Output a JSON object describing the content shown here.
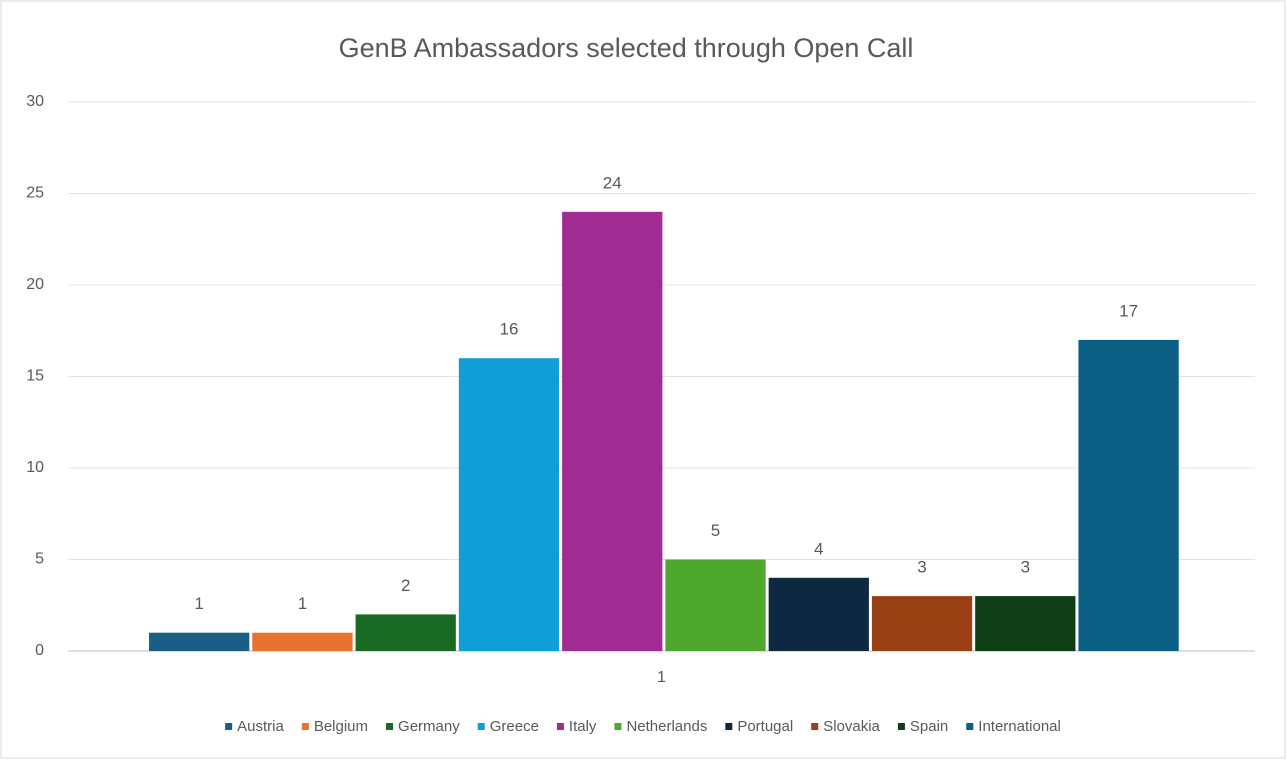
{
  "chart_data": {
    "type": "bar",
    "title": "GenB Ambassadors selected through Open Call",
    "categories": [
      "1"
    ],
    "series": [
      {
        "name": "Austria",
        "color": "#1a5e85",
        "values": [
          1
        ]
      },
      {
        "name": "Belgium",
        "color": "#e97132",
        "values": [
          1
        ]
      },
      {
        "name": "Germany",
        "color": "#196b24",
        "values": [
          2
        ]
      },
      {
        "name": "Greece",
        "color": "#0f9ed5",
        "values": [
          16
        ]
      },
      {
        "name": "Italy",
        "color": "#a02b93",
        "values": [
          24
        ]
      },
      {
        "name": "Netherlands",
        "color": "#4ea72e",
        "values": [
          5
        ]
      },
      {
        "name": "Portugal",
        "color": "#0e2841",
        "values": [
          4
        ]
      },
      {
        "name": "Slovakia",
        "color": "#983f13",
        "values": [
          3
        ]
      },
      {
        "name": "Spain",
        "color": "#0f3d16",
        "values": [
          3
        ]
      },
      {
        "name": "International",
        "color": "#0b5f84",
        "values": [
          17
        ]
      }
    ],
    "ylim": [
      0,
      30
    ],
    "yticks": [
      0,
      5,
      10,
      15,
      20,
      25,
      30
    ],
    "grid": true,
    "legend": "bottom"
  }
}
